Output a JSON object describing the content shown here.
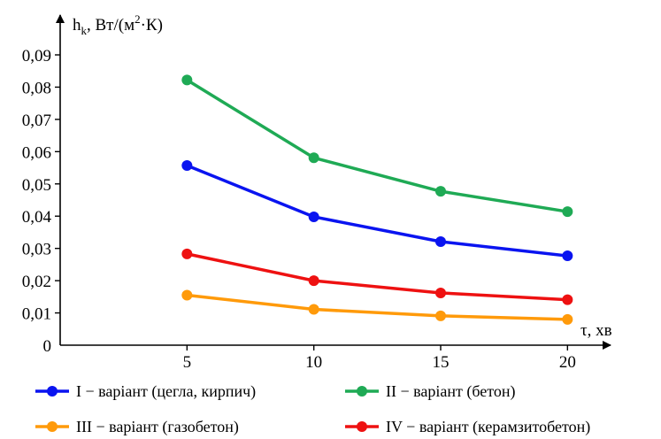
{
  "chart_data": {
    "type": "line",
    "title": "",
    "xlabel": "τ, хв",
    "ylabel_main": "h",
    "ylabel_sub": "k",
    "ylabel_units_a": ", Вт/(м",
    "ylabel_units_sup": "2",
    "ylabel_units_b": "·К)",
    "x": [
      5,
      10,
      15,
      20
    ],
    "x_tick_labels": [
      "5",
      "10",
      "15",
      "20"
    ],
    "y_tick_labels": [
      "0",
      "0,01",
      "0,02",
      "0,03",
      "0,04",
      "0,05",
      "0,06",
      "0,07",
      "0,08",
      "0,09"
    ],
    "ylim": [
      0,
      0.09
    ],
    "xlim": [
      0,
      21
    ],
    "grid": false,
    "legend_position": "bottom",
    "series": [
      {
        "name": "I − варіант (цегла, кирпич)",
        "color": "#0a14f0",
        "values": [
          0.0557,
          0.0398,
          0.0321,
          0.0277
        ]
      },
      {
        "name": "II − варіант (бетон)",
        "color": "#1faa55",
        "values": [
          0.0822,
          0.0581,
          0.0477,
          0.0414
        ]
      },
      {
        "name": "III − варіант (газобетон)",
        "color": "#ff9a0a",
        "values": [
          0.0155,
          0.0111,
          0.0091,
          0.008
        ]
      },
      {
        "name": "IV − варіант (керамзитобетон)",
        "color": "#ee1111",
        "values": [
          0.0283,
          0.02,
          0.0162,
          0.0141
        ]
      }
    ]
  }
}
